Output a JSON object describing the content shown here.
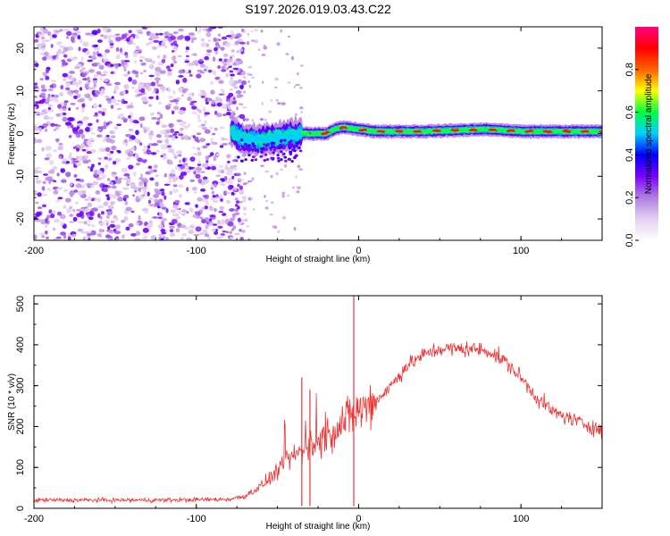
{
  "title": "S197.2026.019.03.43.C22",
  "chart_data": [
    {
      "type": "heatmap",
      "xlabel": "Height of straight line (km)",
      "ylabel": "Frequency (Hz)",
      "xlim": [
        -200,
        150
      ],
      "ylim": [
        -25,
        25
      ],
      "xticks": [
        -200,
        -100,
        0,
        100
      ],
      "yticks": [
        -20,
        -10,
        0,
        10,
        20
      ],
      "colorbar": {
        "label": "Normalized spectral amplitude",
        "range": [
          0,
          1
        ],
        "ticks": [
          0.0,
          0.2,
          0.4,
          0.6,
          0.8
        ],
        "tick_labels": [
          "0.0",
          "0.2",
          "0.4",
          "0.6",
          "0.8"
        ],
        "colors": [
          "#ffffff",
          "#e4cff0",
          "#b07fe0",
          "#7a00ff",
          "#0000ff",
          "#00d0ff",
          "#00ff40",
          "#ffff00",
          "#ff6000",
          "#ff0000",
          "#ff0080"
        ]
      },
      "ridge": [
        {
          "x": -78,
          "f": 0.5
        },
        {
          "x": -70,
          "f": -1.5
        },
        {
          "x": -60,
          "f": -1.5
        },
        {
          "x": -50,
          "f": -1.0
        },
        {
          "x": -42,
          "f": -0.5
        },
        {
          "x": -35,
          "f": 0.0
        },
        {
          "x": -20,
          "f": 0.0
        },
        {
          "x": -15,
          "f": 1.0
        },
        {
          "x": -10,
          "f": 1.5
        },
        {
          "x": 0,
          "f": 1.0
        },
        {
          "x": 10,
          "f": 0.5
        },
        {
          "x": 40,
          "f": 0.5
        },
        {
          "x": 80,
          "f": 1.0
        },
        {
          "x": 100,
          "f": 0.5
        },
        {
          "x": 150,
          "f": 0.5
        }
      ],
      "noise_region": {
        "x": [
          -200,
          -78
        ],
        "f": [
          -25,
          25
        ]
      }
    },
    {
      "type": "line",
      "xlabel": "Height of straight line (km)",
      "ylabel": "SNR (10 * v/v)",
      "xlim": [
        -200,
        150
      ],
      "ylim": [
        0,
        520
      ],
      "xticks": [
        -200,
        -100,
        0,
        100
      ],
      "yticks": [
        0,
        100,
        200,
        300,
        400,
        500
      ],
      "series_color": "#ee3333",
      "envelope": [
        {
          "x": -200,
          "snr": 20
        },
        {
          "x": -160,
          "snr": 20
        },
        {
          "x": -120,
          "snr": 20
        },
        {
          "x": -80,
          "snr": 22
        },
        {
          "x": -70,
          "snr": 30
        },
        {
          "x": -60,
          "snr": 55
        },
        {
          "x": -50,
          "snr": 90
        },
        {
          "x": -40,
          "snr": 130
        },
        {
          "x": -30,
          "snr": 150
        },
        {
          "x": -20,
          "snr": 175
        },
        {
          "x": -10,
          "snr": 210
        },
        {
          "x": 0,
          "snr": 240
        },
        {
          "x": 10,
          "snr": 260
        },
        {
          "x": 20,
          "snr": 300
        },
        {
          "x": 30,
          "snr": 350
        },
        {
          "x": 40,
          "snr": 375
        },
        {
          "x": 50,
          "snr": 390
        },
        {
          "x": 60,
          "snr": 390
        },
        {
          "x": 70,
          "snr": 390
        },
        {
          "x": 80,
          "snr": 385
        },
        {
          "x": 90,
          "snr": 360
        },
        {
          "x": 100,
          "snr": 320
        },
        {
          "x": 110,
          "snr": 270
        },
        {
          "x": 120,
          "snr": 235
        },
        {
          "x": 130,
          "snr": 220
        },
        {
          "x": 140,
          "snr": 205
        },
        {
          "x": 150,
          "snr": 190
        }
      ],
      "spikes": [
        {
          "x": -3,
          "snr": 520
        },
        {
          "x": -35,
          "snr": 320
        },
        {
          "x": -30,
          "snr": 290
        }
      ]
    }
  ]
}
